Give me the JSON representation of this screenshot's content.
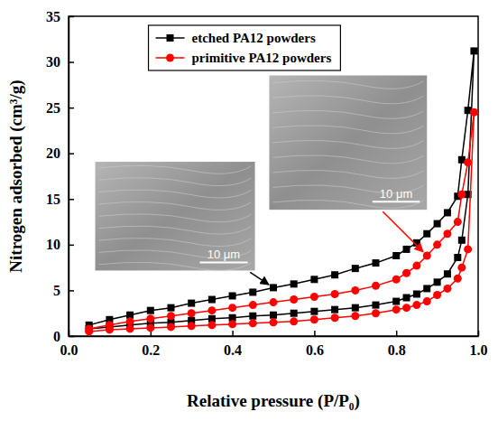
{
  "chart_data": {
    "type": "line",
    "x_label": "Relative pressure (P/P₀)",
    "y_label": "Nitrogen adsorbed (cm³/g)",
    "xlim": [
      0,
      1.0
    ],
    "ylim": [
      0,
      35
    ],
    "xticks": [
      {
        "value": 0,
        "label": "0.0"
      },
      0.2,
      0.4,
      0.6,
      0.8,
      {
        "value": 1,
        "label": "1.0"
      }
    ],
    "yticks": [
      0,
      5,
      10,
      15,
      20,
      25,
      30,
      35
    ],
    "grid": false,
    "legend": "upper left",
    "annotations": [
      "10 μm",
      "10 μm"
    ],
    "series": [
      {
        "name": "etched PA12 powders",
        "color": "#000000",
        "marker": "square",
        "line_style": "solid",
        "x": [
          0.05,
          0.1,
          0.15,
          0.2,
          0.25,
          0.3,
          0.35,
          0.4,
          0.45,
          0.5,
          0.55,
          0.6,
          0.65,
          0.7,
          0.75,
          0.8,
          0.825,
          0.85,
          0.875,
          0.9,
          0.925,
          0.95,
          0.96,
          0.975,
          0.99,
          0.975,
          0.96,
          0.95,
          0.925,
          0.9,
          0.875,
          0.85,
          0.825,
          0.8,
          0.75,
          0.7,
          0.65,
          0.6,
          0.55,
          0.5,
          0.45,
          0.4,
          0.35,
          0.3,
          0.25,
          0.2,
          0.15,
          0.1,
          0.05
        ],
        "values": [
          0.8,
          1.0,
          1.2,
          1.4,
          1.5,
          1.7,
          1.9,
          2.0,
          2.2,
          2.3,
          2.5,
          2.7,
          2.9,
          3.1,
          3.4,
          3.8,
          4.2,
          4.6,
          5.2,
          5.9,
          6.8,
          8.6,
          10.5,
          15.5,
          31.2,
          24.7,
          19.3,
          15.3,
          13.5,
          12.3,
          11.2,
          10.2,
          9.5,
          8.8,
          8.0,
          7.4,
          6.7,
          6.2,
          5.7,
          5.3,
          4.8,
          4.4,
          4.0,
          3.6,
          3.1,
          2.8,
          2.3,
          1.8,
          1.2
        ]
      },
      {
        "name": "primitive PA12 powders",
        "color": "#ff0000",
        "marker": "circle",
        "line_style": "solid",
        "x": [
          0.05,
          0.1,
          0.15,
          0.2,
          0.25,
          0.3,
          0.35,
          0.4,
          0.45,
          0.5,
          0.55,
          0.6,
          0.65,
          0.7,
          0.75,
          0.8,
          0.825,
          0.85,
          0.875,
          0.9,
          0.925,
          0.95,
          0.96,
          0.975,
          0.99,
          0.975,
          0.96,
          0.95,
          0.925,
          0.9,
          0.875,
          0.85,
          0.825,
          0.8,
          0.75,
          0.7,
          0.65,
          0.6,
          0.55,
          0.5,
          0.45,
          0.4,
          0.35,
          0.3,
          0.25,
          0.2,
          0.15,
          0.1,
          0.05
        ],
        "values": [
          0.5,
          0.7,
          0.8,
          0.9,
          1.0,
          1.1,
          1.2,
          1.3,
          1.4,
          1.5,
          1.6,
          1.8,
          2.0,
          2.2,
          2.5,
          2.9,
          3.1,
          3.4,
          3.8,
          4.5,
          5.2,
          6.3,
          7.5,
          9.5,
          24.5,
          19.0,
          15.5,
          12.5,
          11.2,
          10.0,
          8.8,
          7.7,
          6.9,
          6.2,
          5.5,
          5.0,
          4.6,
          4.3,
          4.0,
          3.7,
          3.4,
          3.1,
          2.8,
          2.5,
          2.2,
          1.9,
          1.6,
          1.2,
          0.8
        ]
      }
    ]
  }
}
